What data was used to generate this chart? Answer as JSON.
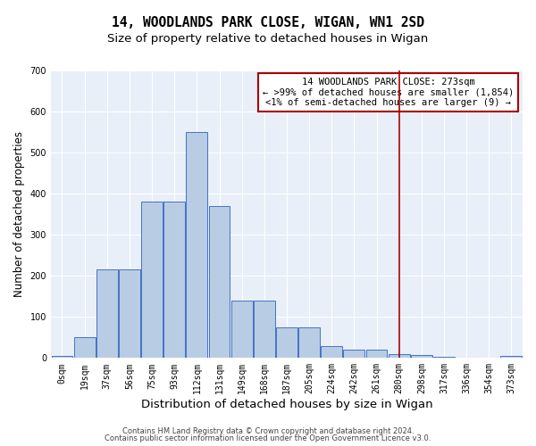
{
  "title": "14, WOODLANDS PARK CLOSE, WIGAN, WN1 2SD",
  "subtitle": "Size of property relative to detached houses in Wigan",
  "xlabel": "Distribution of detached houses by size in Wigan",
  "ylabel": "Number of detached properties",
  "footer1": "Contains HM Land Registry data © Crown copyright and database right 2024.",
  "footer2": "Contains public sector information licensed under the Open Government Licence v3.0.",
  "bar_labels": [
    "0sqm",
    "19sqm",
    "37sqm",
    "56sqm",
    "75sqm",
    "93sqm",
    "112sqm",
    "131sqm",
    "149sqm",
    "168sqm",
    "187sqm",
    "205sqm",
    "224sqm",
    "242sqm",
    "261sqm",
    "280sqm",
    "298sqm",
    "317sqm",
    "336sqm",
    "354sqm",
    "373sqm"
  ],
  "bar_values": [
    5,
    50,
    215,
    215,
    380,
    380,
    550,
    370,
    140,
    140,
    75,
    75,
    30,
    20,
    20,
    10,
    8,
    2,
    1,
    1,
    5
  ],
  "bar_color": "#b8cce4",
  "bar_edgecolor": "#4472c4",
  "red_line_index": 15,
  "red_line_color": "#aa0000",
  "annotation_text": "14 WOODLANDS PARK CLOSE: 273sqm\n← >99% of detached houses are smaller (1,854)\n<1% of semi-detached houses are larger (9) →",
  "annotation_box_edgecolor": "#aa0000",
  "annotation_box_facecolor": "#ffffff",
  "ylim": [
    0,
    700
  ],
  "yticks": [
    0,
    100,
    200,
    300,
    400,
    500,
    600,
    700
  ],
  "axes_facecolor": "#e8eff8",
  "grid_color": "#ffffff",
  "title_fontsize": 10.5,
  "subtitle_fontsize": 9.5,
  "xlabel_fontsize": 9.5,
  "ylabel_fontsize": 8.5,
  "tick_fontsize": 7,
  "annotation_fontsize": 7.5,
  "footer_fontsize": 6
}
